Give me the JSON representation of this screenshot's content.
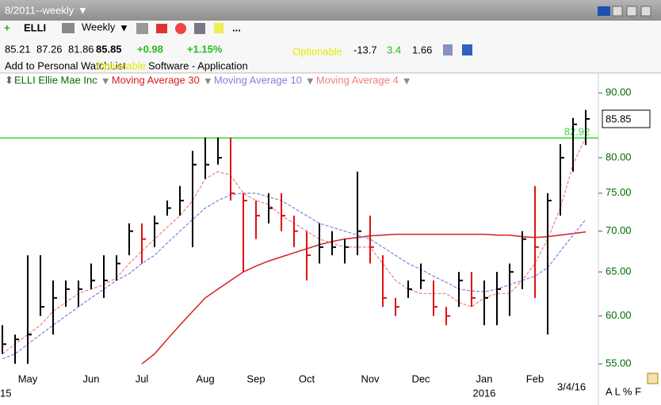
{
  "header": {
    "period": "8/2011--weekly",
    "symbol": "ELLI",
    "interval": "Weekly",
    "more": "...",
    "open": "85.21",
    "high": "87.26",
    "low": "81.86",
    "last": "85.85",
    "change": "+0.98",
    "change_pct": "+1.15%",
    "optionable": "Optionable",
    "stat1": "-13.7",
    "stat2": "3.4",
    "stat3": "1.66",
    "watchlist": "Add to Personal WatchList",
    "optionable2": "Optionable",
    "industry": "Software - Application"
  },
  "footer": {
    "date": "3/4/16",
    "modes": "A L % F"
  },
  "chart_data": {
    "type": "ohlc",
    "name": "ELLI Ellie Mae Inc",
    "categories": [
      null,
      null,
      "May",
      null,
      null,
      null,
      null,
      "Jun",
      null,
      null,
      null,
      "Jul",
      null,
      null,
      null,
      null,
      "Aug",
      null,
      null,
      null,
      "Sep",
      null,
      null,
      null,
      "Oct",
      null,
      null,
      null,
      null,
      "Nov",
      null,
      null,
      null,
      "Dec",
      null,
      null,
      null,
      null,
      "Jan",
      null,
      null,
      null,
      "Feb",
      null,
      null,
      null,
      null
    ],
    "years": [
      "15",
      null,
      null,
      null,
      null,
      null,
      null,
      null,
      null,
      null,
      null,
      null,
      null,
      null,
      null,
      null,
      null,
      null,
      null,
      null,
      null,
      null,
      null,
      null,
      null,
      null,
      null,
      null,
      null,
      null,
      null,
      null,
      null,
      null,
      null,
      null,
      null,
      null,
      "2016",
      null,
      null,
      null,
      null,
      null,
      null,
      null,
      null
    ],
    "high": [
      59,
      58,
      67,
      67,
      64,
      64,
      64,
      66,
      67,
      67,
      71,
      71,
      72,
      74,
      76,
      81,
      83,
      83,
      83,
      75,
      74,
      75,
      75,
      72,
      70,
      71,
      70,
      69,
      78,
      72,
      67,
      62,
      64,
      66,
      64,
      61,
      65,
      65,
      64,
      65,
      66,
      70,
      76,
      75,
      82,
      86,
      87.26
    ],
    "low": [
      56,
      55,
      55,
      60,
      58,
      61,
      61,
      63,
      62,
      64,
      67,
      66,
      68,
      72,
      72,
      68,
      77,
      79,
      74,
      65,
      69,
      71,
      70,
      68,
      64,
      66,
      67,
      66,
      67,
      66,
      61,
      60,
      62,
      63,
      60,
      59,
      61,
      61,
      59,
      59,
      60,
      63,
      62,
      58,
      72,
      78,
      81.86
    ],
    "close": [
      57,
      57.5,
      58,
      61,
      62,
      63,
      63,
      64,
      64,
      66,
      70,
      69,
      71,
      73,
      74,
      79,
      79,
      80,
      75,
      74,
      72,
      73,
      72,
      70,
      67,
      68,
      68,
      68,
      70,
      68,
      62,
      61,
      63,
      64,
      61,
      60,
      64,
      62,
      62,
      63,
      65,
      69,
      68,
      74,
      80,
      85,
      85.85
    ],
    "up_color": "#000000",
    "down_color": "#e01010",
    "series": [
      {
        "name": "Moving Average 30",
        "color": "#d42020",
        "dash": false,
        "values": [
          null,
          null,
          null,
          null,
          null,
          null,
          null,
          null,
          null,
          null,
          null,
          55,
          56,
          57.5,
          59,
          60.5,
          62,
          63,
          64,
          65,
          65.7,
          66.3,
          66.8,
          67.3,
          67.8,
          68.3,
          68.7,
          69,
          69.2,
          69.4,
          69.5,
          69.6,
          69.6,
          69.6,
          69.6,
          69.6,
          69.6,
          69.6,
          69.6,
          69.5,
          69.5,
          69.3,
          69.2,
          69.3,
          69.5,
          69.7,
          69.9
        ]
      },
      {
        "name": "Moving Average 10",
        "color": "#8080e0",
        "dash": true,
        "values": [
          55.5,
          56,
          57,
          58,
          59,
          60,
          61,
          62,
          63,
          64,
          64.8,
          66,
          67,
          68.5,
          70,
          71.5,
          73,
          74,
          74.8,
          75,
          75,
          74.5,
          74,
          73,
          72,
          71,
          70.5,
          70,
          69.5,
          69,
          68,
          67,
          66,
          65.3,
          64.5,
          63.8,
          63,
          62.8,
          62.7,
          63,
          63.5,
          64,
          64.5,
          65.5,
          67.5,
          69.5,
          71.5
        ]
      },
      {
        "name": "Moving Average 4",
        "color": "#f08080",
        "dash": true,
        "values": [
          56,
          57,
          58,
          59,
          60.5,
          61.5,
          62.5,
          63,
          63.5,
          64.3,
          66,
          67.5,
          69,
          70.5,
          72,
          74,
          77,
          78,
          77.5,
          75,
          74,
          73.5,
          72,
          71,
          70,
          69,
          68.5,
          68,
          68,
          68,
          66,
          64,
          63,
          62.5,
          62.5,
          62.5,
          61.5,
          61,
          62,
          62.5,
          62.5,
          64,
          66,
          69,
          73,
          79,
          83
        ]
      }
    ],
    "hline": {
      "value": 82.92,
      "label": "82.92",
      "color": "#33dd33"
    },
    "ylim": [
      52.6,
      93.2
    ],
    "log": true,
    "yticks": [
      {
        "value": 55,
        "label": "55.00"
      },
      {
        "value": 60,
        "label": "60.00"
      },
      {
        "value": 65,
        "label": "65.00"
      },
      {
        "value": 70,
        "label": "70.00"
      },
      {
        "value": 75,
        "label": "75.00"
      },
      {
        "value": 80,
        "label": "80.00"
      },
      {
        "value": 90,
        "label": "90.00"
      }
    ]
  }
}
